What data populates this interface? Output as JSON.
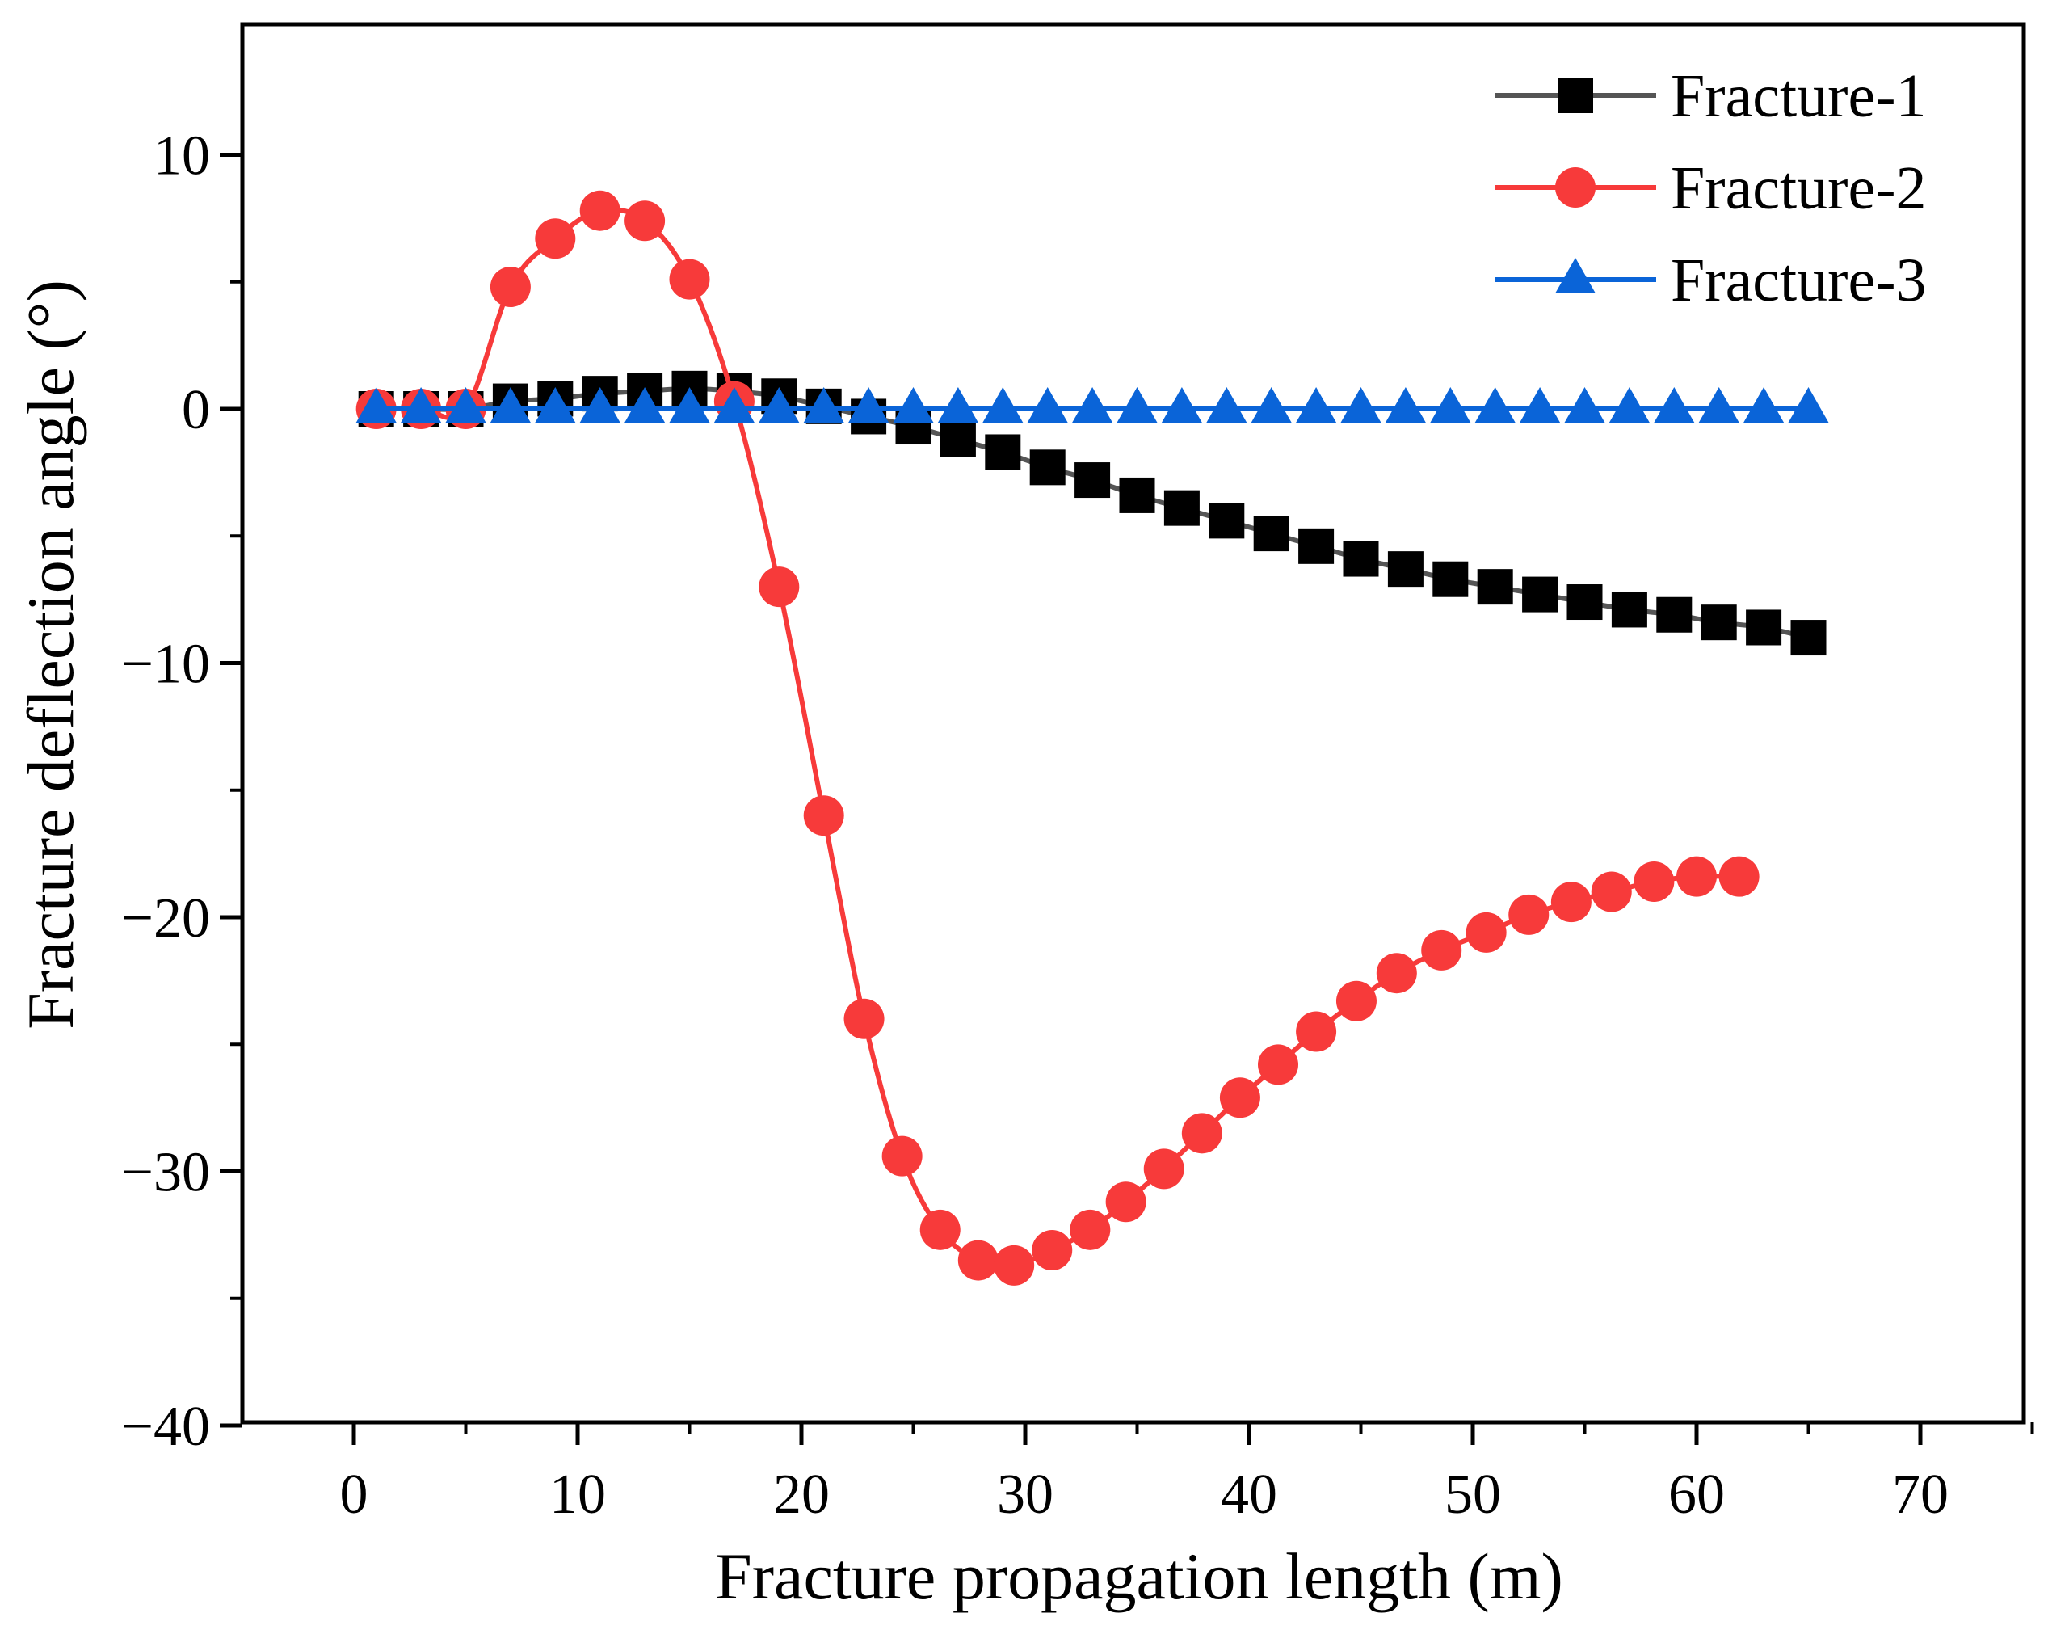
{
  "chart_data": {
    "type": "line",
    "title": "",
    "xlabel": "Fracture propagation length (m)",
    "ylabel": "Fracture deflection angle (°)",
    "xlim": [
      -5,
      75
    ],
    "ylim": [
      -40,
      15
    ],
    "xticks": [
      0,
      10,
      20,
      30,
      40,
      50,
      60,
      70
    ],
    "yticks": [
      -40,
      -30,
      -20,
      -10,
      0,
      10
    ],
    "xtick_labels": [
      "0",
      "10",
      "20",
      "30",
      "40",
      "50",
      "60",
      "70"
    ],
    "ytick_labels": [
      "−40",
      "−30",
      "−20",
      "−10",
      "0",
      "10"
    ],
    "legend_position": "top-right",
    "series": [
      {
        "name": "Fracture-1",
        "marker": "square",
        "color": "#000000",
        "line_color": "#555555",
        "x": [
          1,
          3,
          5,
          7,
          9,
          11,
          13,
          15,
          17,
          19,
          21,
          23,
          25,
          27,
          29,
          31,
          33,
          35,
          37,
          39,
          41,
          43,
          45,
          47,
          49,
          51,
          53,
          55,
          57,
          59,
          61,
          63,
          65
        ],
        "y": [
          0,
          0,
          0,
          0.3,
          0.4,
          0.6,
          0.7,
          0.8,
          0.7,
          0.5,
          0.1,
          -0.3,
          -0.7,
          -1.2,
          -1.7,
          -2.3,
          -2.8,
          -3.4,
          -3.9,
          -4.4,
          -4.9,
          -5.4,
          -5.9,
          -6.3,
          -6.7,
          -7.0,
          -7.3,
          -7.6,
          -7.9,
          -8.1,
          -8.4,
          -8.6,
          -9.0
        ]
      },
      {
        "name": "Fracture-2",
        "marker": "circle",
        "color": "#f73a3a",
        "line_color": "#f73a3a",
        "x": [
          1,
          3,
          5,
          7,
          9,
          11,
          13,
          15,
          17,
          19,
          21,
          22.8,
          24.5,
          26.2,
          27.9,
          29.5,
          31.2,
          32.9,
          34.5,
          36.2,
          37.9,
          39.6,
          41.3,
          43.0,
          44.8,
          46.6,
          48.6,
          50.6,
          52.5,
          54.4,
          56.2,
          58.1,
          60.0,
          61.9
        ],
        "y": [
          0,
          0,
          0,
          4.8,
          6.7,
          7.8,
          7.4,
          5.1,
          0.3,
          -7.0,
          -16.0,
          -24.0,
          -29.4,
          -32.3,
          -33.5,
          -33.7,
          -33.1,
          -32.3,
          -31.2,
          -29.9,
          -28.5,
          -27.1,
          -25.8,
          -24.5,
          -23.3,
          -22.2,
          -21.3,
          -20.6,
          -19.9,
          -19.4,
          -19.0,
          -18.6,
          -18.4,
          -18.4
        ]
      },
      {
        "name": "Fracture-3",
        "marker": "triangle",
        "color": "#0a64d8",
        "line_color": "#0a64d8",
        "x": [
          1,
          3,
          5,
          7,
          9,
          11,
          13,
          15,
          17,
          19,
          21,
          23,
          25,
          27,
          29,
          31,
          33,
          35,
          37,
          39,
          41,
          43,
          45,
          47,
          49,
          51,
          53,
          55,
          57,
          59,
          61,
          63,
          65
        ],
        "y": [
          0,
          0,
          0,
          0,
          0,
          0,
          0,
          0,
          0,
          0,
          0,
          0,
          0,
          0,
          0,
          0,
          0,
          0,
          0,
          0,
          0,
          0,
          0,
          0,
          0,
          0,
          0,
          0,
          0,
          0,
          0,
          0,
          0
        ]
      }
    ]
  }
}
